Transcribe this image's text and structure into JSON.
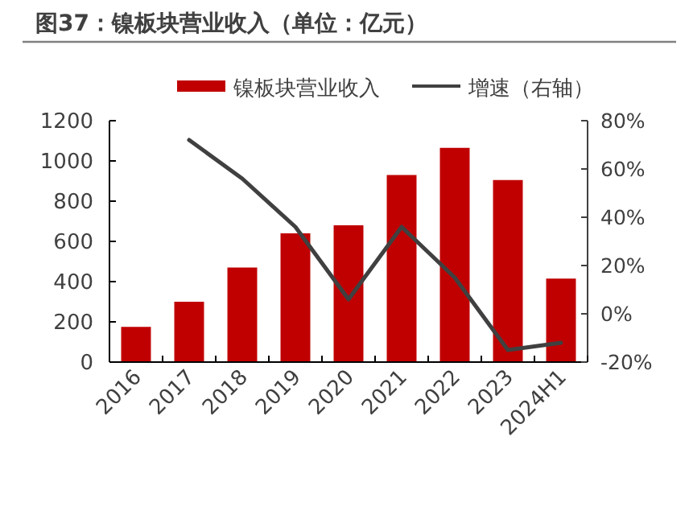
{
  "chart_data": {
    "type": "bar",
    "title": "图37：镍板块营业收入（单位：亿元）",
    "categories": [
      "2016",
      "2017",
      "2018",
      "2019",
      "2020",
      "2021",
      "2022",
      "2023",
      "2024H1"
    ],
    "series": [
      {
        "name": "镍板块营业收入",
        "color": "#c00000",
        "values": [
          175,
          300,
          470,
          640,
          680,
          930,
          1065,
          905,
          415
        ]
      },
      {
        "name": "增速（右轴）",
        "type": "line",
        "axis": "y2",
        "color": "#404040",
        "values": [
          null,
          72,
          56,
          36,
          6,
          36,
          15,
          -15,
          -12
        ]
      }
    ],
    "ylim": [
      0,
      1200
    ],
    "yticks": [
      0,
      200,
      400,
      600,
      800,
      1000,
      1200
    ],
    "y2lim": [
      -20,
      80
    ],
    "y2ticks": [
      {
        "value": -20,
        "label": "-20%"
      },
      {
        "value": 0,
        "label": "0%"
      },
      {
        "value": 20,
        "label": "20%"
      },
      {
        "value": 40,
        "label": "40%"
      },
      {
        "value": 60,
        "label": "60%"
      },
      {
        "value": 80,
        "label": "80%"
      }
    ],
    "legend": "top",
    "grid": false,
    "marker": "none",
    "line_style": "solid"
  }
}
